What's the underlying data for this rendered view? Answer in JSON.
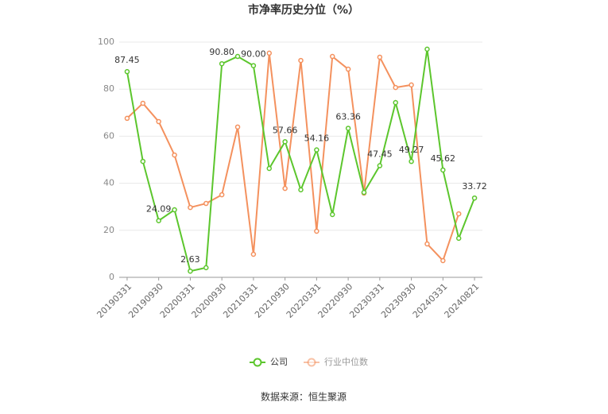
{
  "chart_data": {
    "type": "line",
    "title": "市净率历史分位（%）",
    "categories": [
      "20190331",
      null,
      "20190930",
      null,
      "20200331",
      null,
      "20200930",
      null,
      "20210331",
      null,
      "20210930",
      null,
      "20220331",
      null,
      "20220930",
      null,
      "20230331",
      null,
      "20230930",
      null,
      "20240331",
      null,
      "20240821"
    ],
    "series": [
      {
        "name": "公司",
        "color": "#5cc62d",
        "values": [
          87.45,
          49.3,
          24.09,
          28.7,
          2.63,
          4.1,
          90.8,
          93.9,
          90.0,
          46.3,
          57.66,
          37.2,
          54.16,
          26.7,
          63.36,
          36.1,
          47.45,
          74.3,
          49.27,
          97.0,
          45.62,
          16.6,
          33.72
        ],
        "value_labels": [
          "87.45",
          null,
          "24.09",
          null,
          "2.63",
          null,
          "90.80",
          null,
          "90.00",
          null,
          "57.66",
          null,
          "54.16",
          null,
          "63.36",
          null,
          "47.45",
          null,
          "49.27",
          null,
          "45.62",
          null,
          "33.72"
        ]
      },
      {
        "name": "行业中位数",
        "color": "#f4915e",
        "values": [
          67.6,
          74.0,
          66.2,
          52.0,
          29.7,
          31.4,
          35.1,
          63.9,
          9.8,
          95.3,
          37.8,
          92.2,
          19.6,
          93.9,
          88.5,
          35.8,
          93.6,
          80.7,
          81.8,
          14.2,
          7.1,
          27.0,
          null
        ]
      }
    ],
    "ylim": [
      0,
      100
    ],
    "yticks": [
      0,
      20,
      40,
      60,
      80,
      100
    ],
    "grid": true,
    "source": "数据来源：恒生聚源"
  }
}
